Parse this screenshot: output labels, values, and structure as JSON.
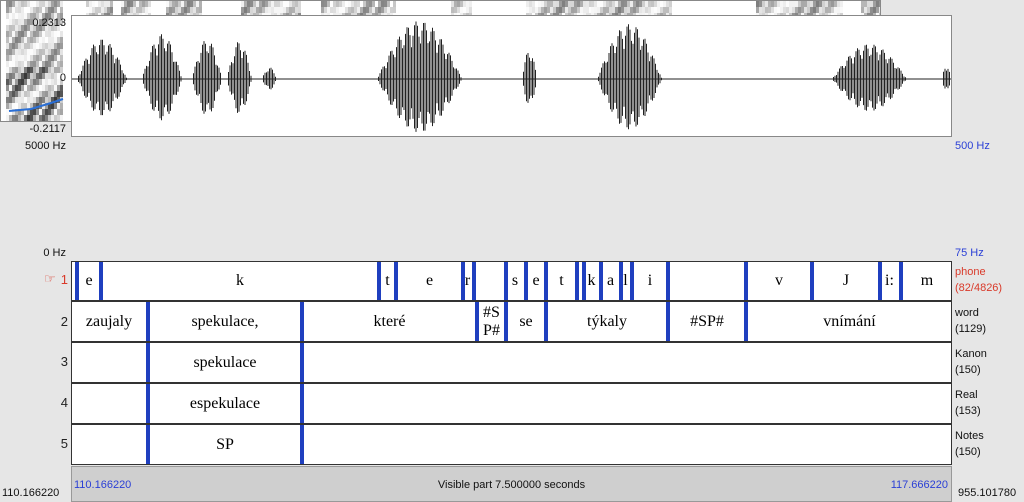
{
  "waveform": {
    "amp_max": "0.2313",
    "amp_zero": "0",
    "amp_min": "-0.2117"
  },
  "spectrogram": {
    "freq_max_left": "5000 Hz",
    "freq_min_left": "0 Hz",
    "pitch_max_right": "500 Hz",
    "pitch_min_right": "75 Hz"
  },
  "tiers": [
    {
      "number": "1",
      "name": "phone",
      "count": "(82/4826)",
      "selected": true,
      "intervals": [
        "e",
        "k",
        "t",
        "e",
        "r",
        "s",
        "e",
        "t",
        "k",
        "a",
        "l",
        "i",
        "v",
        "J",
        "i:",
        "m"
      ]
    },
    {
      "number": "2",
      "name": "word",
      "count": "(1129)",
      "intervals": [
        "zaujaly",
        "spekulace,",
        "které",
        "#SP#",
        "se",
        "týkaly",
        "#SP#",
        "vnímání"
      ]
    },
    {
      "number": "3",
      "name": "Kanon",
      "count": "(150)",
      "intervals": [
        "spekulace"
      ]
    },
    {
      "number": "4",
      "name": "Real",
      "count": "(153)",
      "intervals": [
        "espekulace"
      ]
    },
    {
      "number": "5",
      "name": "Notes",
      "count": "(150)",
      "intervals": [
        "SP"
      ]
    }
  ],
  "bottom": {
    "window_start": "110.166220",
    "visible_start": "110.166220",
    "visible_label": "Visible part 7.500000 seconds",
    "visible_end": "117.666220",
    "window_end": "955.101780"
  },
  "colors": {
    "boundary": "#1f3fbf",
    "pitch": "#2a6fd6",
    "selected_tier": "#d93a2a",
    "time_blue": "#2a3fd6"
  },
  "icons": {
    "selected_tier_marker": "pointing-hand-icon"
  }
}
